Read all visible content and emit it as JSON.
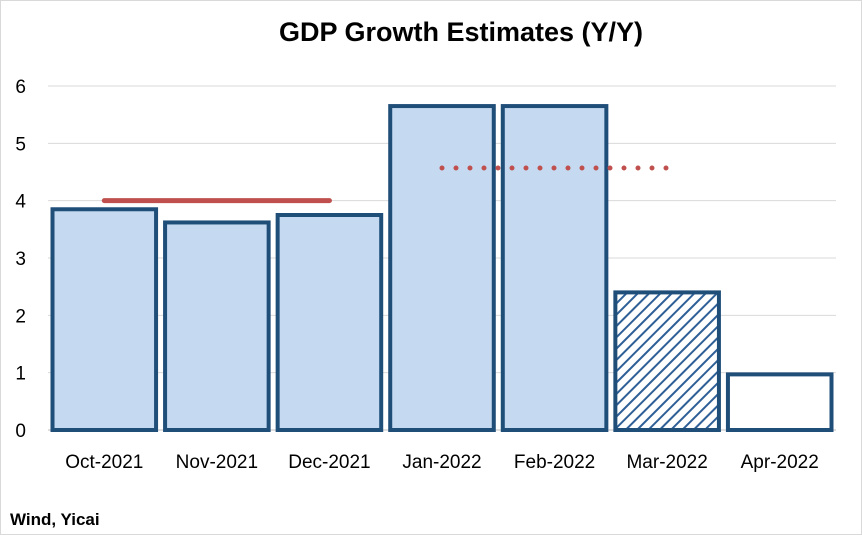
{
  "chart_data": {
    "type": "bar",
    "title": "GDP Growth Estimates (Y/Y)",
    "xlabel": "",
    "ylabel": "",
    "ylim": [
      0,
      6
    ],
    "yticks": [
      "0",
      "1",
      "2",
      "3",
      "4",
      "5",
      "6"
    ],
    "grid": true,
    "legend": "none",
    "categories": [
      "Oct-2021",
      "Nov-2021",
      "Dec-2021",
      "Jan-2022",
      "Feb-2022",
      "Mar-2022",
      "Apr-2022"
    ],
    "series": [
      {
        "values": [
          3.85,
          3.62,
          3.75,
          5.65,
          5.65,
          2.4,
          0.97
        ],
        "styles": [
          "solid",
          "solid",
          "solid",
          "solid",
          "solid",
          "hatched",
          "hollow"
        ]
      }
    ],
    "reference_lines": [
      {
        "style": "solid",
        "value": 4.0,
        "from_category": "Oct-2021",
        "to_category": "Dec-2021"
      },
      {
        "style": "dotted",
        "value": 4.57,
        "from_category": "Jan-2022",
        "to_category": "Mar-2022"
      }
    ],
    "source": "Wind, Yicai",
    "colors": {
      "bar_fill": "#c5d9f1",
      "bar_stroke": "#1f4e79",
      "hatch": "#2e5f96",
      "reference_line": "#c0504d",
      "grid": "#d9d9d9",
      "axis": "#bfbfbf"
    }
  }
}
